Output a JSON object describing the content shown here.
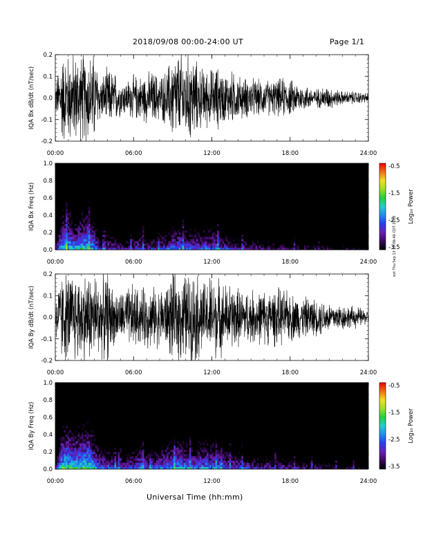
{
  "header": {
    "title": "2018/09/08   00:00-24:00 UT",
    "page": "Page 1/1"
  },
  "footer": {
    "xlabel": "Universal Time (hh:mm)",
    "stamp": "ext Thu Sep 13 09:06:46 CDT 2018"
  },
  "colorbar": {
    "label": "Log₁₀ Power",
    "ticks": [
      "-0.5",
      "-1.5",
      "-2.5",
      "-3.5"
    ],
    "colors": [
      "#000000",
      "#3a0a5c",
      "#6a1fb0",
      "#2a3cf0",
      "#1f8cf0",
      "#22d0c8",
      "#22d040",
      "#9ee020",
      "#f0e020",
      "#f07010",
      "#f00000"
    ]
  },
  "chart_data": [
    {
      "type": "line",
      "ylabel": "IQA Bx dB/dt (nT/sec)",
      "xlabel": "",
      "x_ticks": [
        "00:00",
        "06:00",
        "12:00",
        "18:00",
        "24:00"
      ],
      "y_ticks": [
        "0.2",
        "0.1",
        "0.0",
        "-0.1",
        "-0.2"
      ],
      "ylim": [
        -0.2,
        0.2
      ],
      "xlim_hours": [
        0,
        24
      ],
      "series": [
        {
          "x_hours": [
            0,
            0.5,
            1,
            1.5,
            2,
            2.5,
            3,
            3.5,
            4,
            4.5,
            5,
            5.5,
            6,
            6.5,
            7,
            7.5,
            8,
            8.5,
            9,
            9.5,
            10,
            10.5,
            11,
            11.5,
            12,
            12.5,
            13,
            13.5,
            14,
            14.5,
            15,
            15.5,
            16,
            16.5,
            17,
            17.5,
            18,
            18.5,
            19,
            19.5,
            20,
            20.5,
            21,
            21.5,
            22,
            22.5,
            23,
            23.5,
            24
          ],
          "envelope": [
            0.06,
            0.2,
            0.2,
            0.2,
            0.2,
            0.2,
            0.2,
            0.09,
            0.13,
            0.12,
            0.08,
            0.08,
            0.1,
            0.1,
            0.11,
            0.12,
            0.1,
            0.12,
            0.2,
            0.2,
            0.2,
            0.2,
            0.14,
            0.13,
            0.13,
            0.14,
            0.11,
            0.12,
            0.1,
            0.09,
            0.09,
            0.08,
            0.08,
            0.08,
            0.08,
            0.09,
            0.08,
            0.07,
            0.06,
            0.05,
            0.04,
            0.05,
            0.05,
            0.04,
            0.03,
            0.03,
            0.03,
            0.025,
            0.02
          ]
        }
      ]
    },
    {
      "type": "heatmap",
      "ylabel": "IQA Bx Freq (Hz)",
      "xlabel": "",
      "x_ticks": [
        "00:00",
        "06:00",
        "12:00",
        "18:00",
        "24:00"
      ],
      "y_ticks": [
        "1.0",
        "0.8",
        "0.6",
        "0.4",
        "0.2",
        "0.0"
      ],
      "ylim": [
        0,
        1
      ],
      "zlim": [
        -3.5,
        -0.5
      ],
      "x_hours": [
        0,
        0.5,
        1,
        1.5,
        2,
        2.5,
        3,
        3.5,
        4,
        4.5,
        5,
        5.5,
        6,
        6.5,
        7,
        7.5,
        8,
        8.5,
        9,
        9.5,
        10,
        10.5,
        11,
        11.5,
        12,
        12.5,
        13,
        13.5,
        14,
        14.5,
        15,
        15.5,
        16,
        16.5,
        17,
        17.5,
        18,
        18.5,
        19,
        19.5,
        20,
        20.5,
        21,
        21.5,
        22,
        22.5,
        23,
        23.5,
        24
      ],
      "low_freq_log_power": [
        -2.8,
        -1.6,
        -1.5,
        -1.8,
        -1.6,
        -1.5,
        -1.9,
        -2.6,
        -2.4,
        -2.5,
        -2.7,
        -2.6,
        -2.5,
        -2.3,
        -2.6,
        -2.5,
        -2.4,
        -2.3,
        -2.1,
        -2.0,
        -2.1,
        -2.2,
        -2.2,
        -2.1,
        -2.1,
        -2.2,
        -2.4,
        -2.5,
        -2.6,
        -2.6,
        -2.7,
        -2.7,
        -2.8,
        -2.8,
        -2.8,
        -2.8,
        -2.9,
        -2.9,
        -2.9,
        -3.0,
        -3.0,
        -3.0,
        -3.1,
        -3.1,
        -3.1,
        -3.1,
        -3.2,
        -3.2,
        -3.2
      ]
    },
    {
      "type": "line",
      "ylabel": "IQA By dB/dt (nT/sec)",
      "xlabel": "",
      "x_ticks": [
        "00:00",
        "06:00",
        "12:00",
        "18:00",
        "24:00"
      ],
      "y_ticks": [
        "0.2",
        "0.1",
        "0.0",
        "-0.1",
        "-0.2"
      ],
      "ylim": [
        -0.2,
        0.2
      ],
      "xlim_hours": [
        0,
        24
      ],
      "series": [
        {
          "x_hours": [
            0,
            0.5,
            1,
            1.5,
            2,
            2.5,
            3,
            3.5,
            4,
            4.5,
            5,
            5.5,
            6,
            6.5,
            7,
            7.5,
            8,
            8.5,
            9,
            9.5,
            10,
            10.5,
            11,
            11.5,
            12,
            12.5,
            13,
            13.5,
            14,
            14.5,
            15,
            15.5,
            16,
            16.5,
            17,
            17.5,
            18,
            18.5,
            19,
            19.5,
            20,
            20.5,
            21,
            21.5,
            22,
            22.5,
            23,
            23.5,
            24
          ],
          "envelope": [
            0.09,
            0.2,
            0.2,
            0.2,
            0.2,
            0.2,
            0.2,
            0.17,
            0.2,
            0.12,
            0.11,
            0.13,
            0.15,
            0.12,
            0.14,
            0.13,
            0.13,
            0.14,
            0.2,
            0.2,
            0.2,
            0.2,
            0.2,
            0.15,
            0.2,
            0.17,
            0.15,
            0.15,
            0.13,
            0.12,
            0.12,
            0.12,
            0.12,
            0.12,
            0.13,
            0.12,
            0.11,
            0.1,
            0.09,
            0.09,
            0.08,
            0.08,
            0.07,
            0.06,
            0.06,
            0.05,
            0.05,
            0.04,
            0.03
          ]
        }
      ]
    },
    {
      "type": "heatmap",
      "ylabel": "IQA By Freq (Hz)",
      "xlabel": "",
      "x_ticks": [
        "00:00",
        "06:00",
        "12:00",
        "18:00",
        "24:00"
      ],
      "y_ticks": [
        "1.0",
        "0.8",
        "0.6",
        "0.4",
        "0.2",
        "0.0"
      ],
      "ylim": [
        0,
        1
      ],
      "zlim": [
        -3.5,
        -0.5
      ],
      "x_hours": [
        0,
        0.5,
        1,
        1.5,
        2,
        2.5,
        3,
        3.5,
        4,
        4.5,
        5,
        5.5,
        6,
        6.5,
        7,
        7.5,
        8,
        8.5,
        9,
        9.5,
        10,
        10.5,
        11,
        11.5,
        12,
        12.5,
        13,
        13.5,
        14,
        14.5,
        15,
        15.5,
        16,
        16.5,
        17,
        17.5,
        18,
        18.5,
        19,
        19.5,
        20,
        20.5,
        21,
        21.5,
        22,
        22.5,
        23,
        23.5,
        24
      ],
      "low_freq_log_power": [
        -2.6,
        -1.4,
        -1.3,
        -1.5,
        -1.4,
        -1.3,
        -1.7,
        -2.2,
        -2.1,
        -2.3,
        -2.5,
        -2.4,
        -2.2,
        -2.0,
        -2.3,
        -2.2,
        -2.1,
        -2.0,
        -1.8,
        -1.8,
        -1.9,
        -2.0,
        -1.9,
        -1.9,
        -1.9,
        -2.0,
        -2.2,
        -2.3,
        -2.3,
        -2.4,
        -2.5,
        -2.5,
        -2.6,
        -2.6,
        -2.6,
        -2.6,
        -2.7,
        -2.7,
        -2.8,
        -2.8,
        -2.8,
        -2.9,
        -2.9,
        -3.0,
        -3.0,
        -3.0,
        -3.1,
        -3.1,
        -3.1
      ]
    }
  ]
}
